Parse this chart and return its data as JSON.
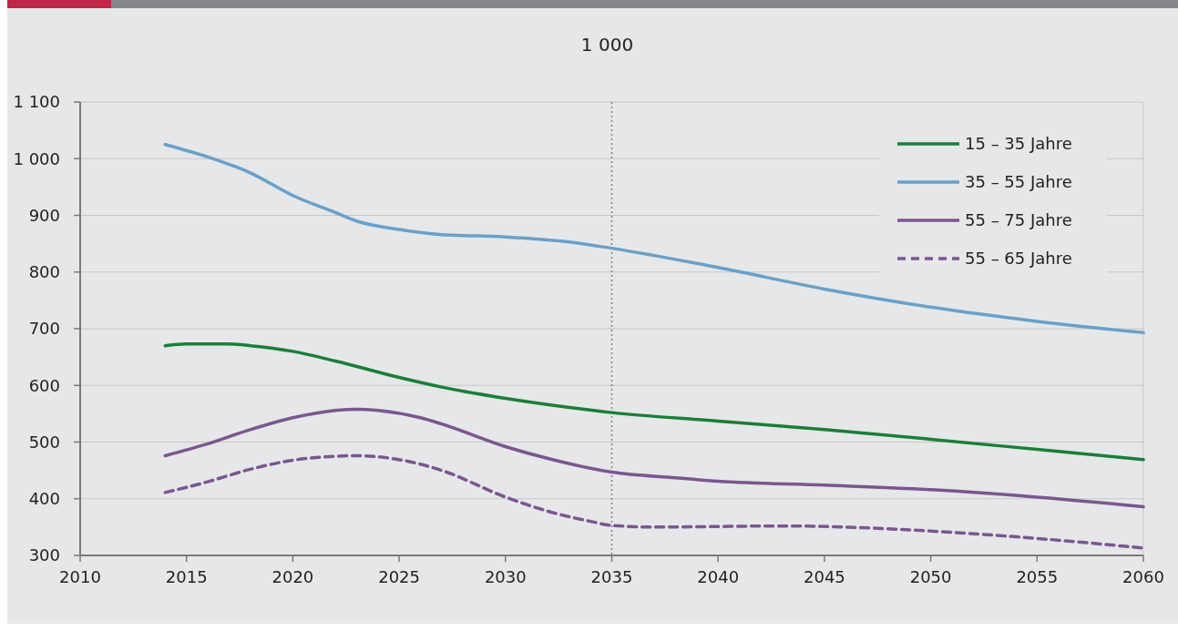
{
  "chart_data": {
    "type": "line",
    "title": "1 000",
    "xlim": [
      2010,
      2060
    ],
    "xticks": [
      2010,
      2015,
      2020,
      2025,
      2030,
      2035,
      2040,
      2045,
      2050,
      2055,
      2060
    ],
    "ylim": [
      300,
      1100
    ],
    "yticks": [
      {
        "value": 300,
        "label": "300"
      },
      {
        "value": 400,
        "label": "400"
      },
      {
        "value": 500,
        "label": "500"
      },
      {
        "value": 600,
        "label": "600"
      },
      {
        "value": 700,
        "label": "700"
      },
      {
        "value": 800,
        "label": "800"
      },
      {
        "value": 900,
        "label": "900"
      },
      {
        "value": 1000,
        "label": "1 000"
      },
      {
        "value": 1100,
        "label": "1 100"
      }
    ],
    "grid": "y",
    "legend": "top right",
    "ref_lines": [
      {
        "axis": "x",
        "value": 2035,
        "color": "#808080",
        "line_style": "dotted"
      }
    ],
    "series": [
      {
        "name": "15 – 35 Jahre",
        "color": "#1a7f37",
        "line_style": "solid",
        "x": [
          2014,
          2015,
          2017,
          2018,
          2020,
          2022,
          2025,
          2027,
          2030,
          2033,
          2035,
          2040,
          2045,
          2050,
          2055,
          2060
        ],
        "values": [
          670,
          673,
          673,
          670,
          660,
          643,
          614,
          597,
          577,
          561,
          552,
          537,
          522,
          505,
          487,
          469
        ]
      },
      {
        "name": "35 – 55 Jahre",
        "color": "#6aa0c8",
        "line_style": "solid",
        "x": [
          2014,
          2016,
          2018,
          2020,
          2022,
          2023,
          2025,
          2027,
          2030,
          2033,
          2035,
          2040,
          2045,
          2050,
          2055,
          2060
        ],
        "values": [
          1025,
          1003,
          975,
          935,
          905,
          890,
          875,
          866,
          862,
          853,
          842,
          808,
          770,
          738,
          713,
          693
        ]
      },
      {
        "name": "55 – 75 Jahre",
        "color": "#7b5690",
        "line_style": "solid",
        "x": [
          2014,
          2016,
          2018,
          2020,
          2022,
          2023,
          2024,
          2026,
          2027,
          2030,
          2032,
          2035,
          2038,
          2040,
          2045,
          2050,
          2055,
          2060
        ],
        "values": [
          476,
          497,
          522,
          543,
          556,
          558,
          556,
          543,
          532,
          492,
          471,
          447,
          437,
          431,
          424,
          416,
          403,
          386
        ]
      },
      {
        "name": "55 – 65 Jahre",
        "color": "#7b5690",
        "line_style": "dashed",
        "x": [
          2014,
          2016,
          2018,
          2020,
          2022,
          2023,
          2024,
          2026,
          2027,
          2030,
          2032,
          2034,
          2035,
          2037,
          2040,
          2043,
          2046,
          2050,
          2055,
          2060
        ],
        "values": [
          411,
          430,
          452,
          468,
          475,
          476,
          474,
          461,
          450,
          403,
          378,
          360,
          353,
          350,
          351,
          352,
          350,
          343,
          330,
          313
        ]
      }
    ]
  }
}
